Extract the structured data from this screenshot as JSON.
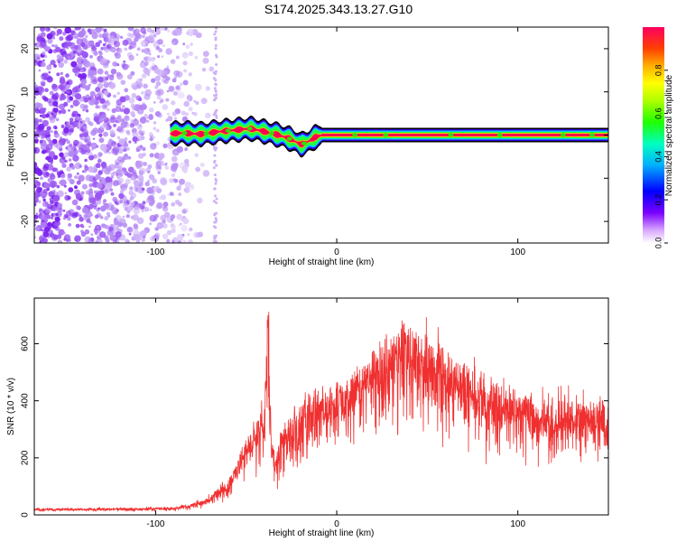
{
  "title": "S174.2025.343.13.27.G10",
  "colors": {
    "snr_line": "#f03030",
    "scatter": "#7d2cf0",
    "band_outline": "#000000"
  },
  "chart_data": [
    {
      "type": "heatmap",
      "xlabel": "Height of straight line (km)",
      "ylabel": "Frequency (Hz)",
      "xlim": [
        -167,
        150
      ],
      "ylim": [
        -25,
        25
      ],
      "xticks": [
        -100,
        0,
        100
      ],
      "yticks": [
        -20,
        -10,
        0,
        10,
        20
      ],
      "colorbar": {
        "label": "Normalized spectral amplitude",
        "range": [
          0,
          1
        ],
        "ticks": [
          0.0,
          0.2,
          0.4,
          0.6,
          0.8
        ],
        "colormap": "rainbow"
      },
      "noise_region_x": [
        -167,
        -67
      ],
      "signal_track": {
        "x": [
          -92,
          -85,
          -75,
          -65,
          -55,
          -48,
          -42,
          -38,
          -32,
          -25,
          -20,
          -17,
          -12,
          -8,
          0,
          25,
          50,
          75,
          100,
          125,
          150
        ],
        "freq": [
          0.3,
          0.5,
          0.2,
          0.8,
          1.2,
          1.5,
          1.0,
          0.6,
          0.0,
          -1.0,
          -2.2,
          -1.8,
          -0.5,
          0.0,
          0.0,
          0.0,
          0.0,
          0.0,
          0.0,
          0.0,
          0.0
        ]
      }
    },
    {
      "type": "line",
      "xlabel": "Height of straight line (km)",
      "ylabel": "SNR (10 * v/v)",
      "xlim": [
        -167,
        150
      ],
      "ylim": [
        0,
        760
      ],
      "xticks": [
        -100,
        0,
        100
      ],
      "yticks": [
        0,
        200,
        400,
        600
      ],
      "series": [
        {
          "x": [
            -167,
            -140,
            -110,
            -90,
            -80,
            -72,
            -66,
            -60,
            -55,
            -50,
            -45,
            -40,
            -38,
            -36,
            -34,
            -30,
            -20,
            -10,
            0,
            10,
            20,
            30,
            40,
            50,
            60,
            70,
            80,
            90,
            100,
            110,
            120,
            130,
            140,
            150
          ],
          "values": [
            20,
            22,
            22,
            25,
            35,
            55,
            80,
            110,
            170,
            250,
            300,
            330,
            700,
            260,
            180,
            280,
            350,
            400,
            420,
            460,
            520,
            580,
            600,
            560,
            520,
            480,
            450,
            420,
            400,
            370,
            360,
            370,
            360,
            350
          ]
        }
      ]
    }
  ]
}
